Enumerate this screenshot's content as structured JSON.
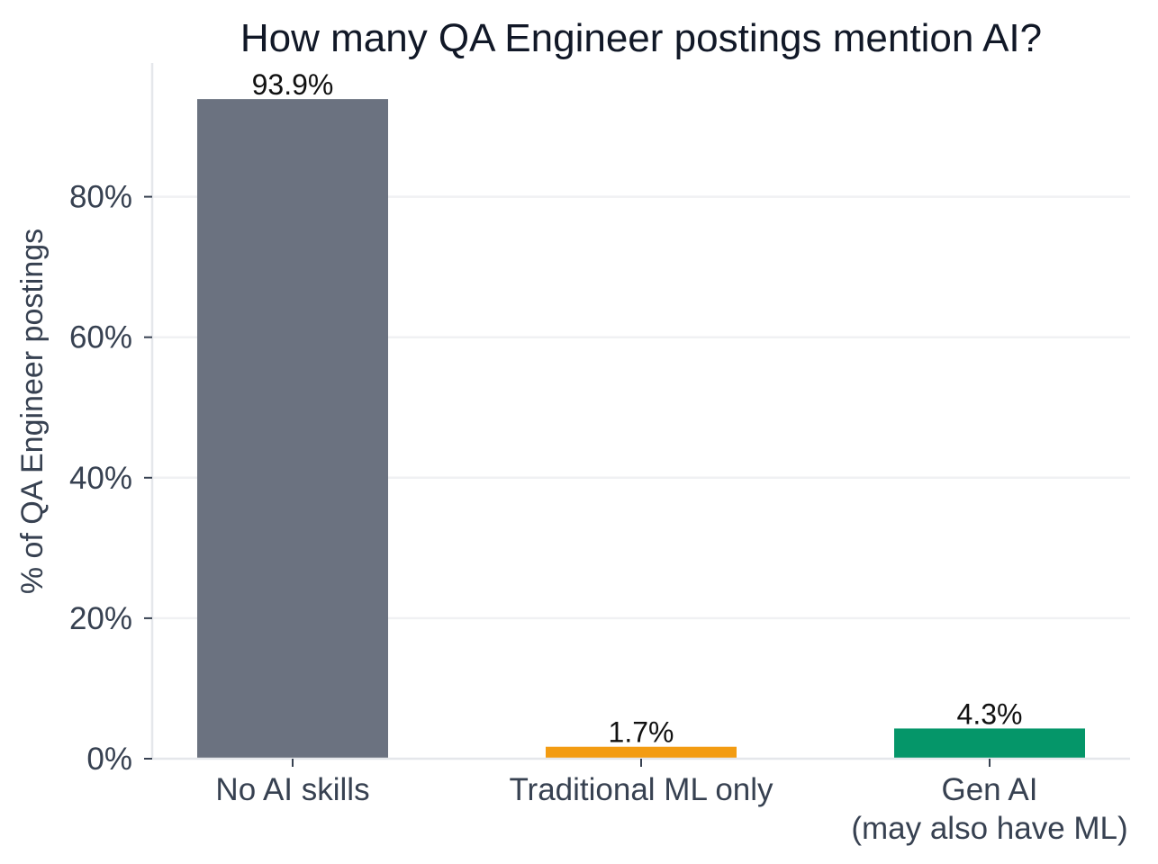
{
  "chart_data": {
    "type": "bar",
    "title": "How many QA Engineer postings mention AI?",
    "xlabel": "",
    "ylabel": "% of QA Engineer postings",
    "categories": [
      [
        "No AI skills"
      ],
      [
        "Traditional ML only"
      ],
      [
        "Gen AI",
        "(may also have ML)"
      ]
    ],
    "values": [
      93.9,
      1.7,
      4.3
    ],
    "value_labels": [
      "93.9%",
      "1.7%",
      "4.3%"
    ],
    "colors": [
      "#6b7280",
      "#f39c12",
      "#059669"
    ],
    "yticks": [
      0,
      20,
      40,
      60,
      80
    ],
    "ytick_labels": [
      "0%",
      "20%",
      "40%",
      "60%",
      "80%"
    ],
    "ylim": [
      0,
      100
    ],
    "grid": "horizontal",
    "legend": "none"
  }
}
